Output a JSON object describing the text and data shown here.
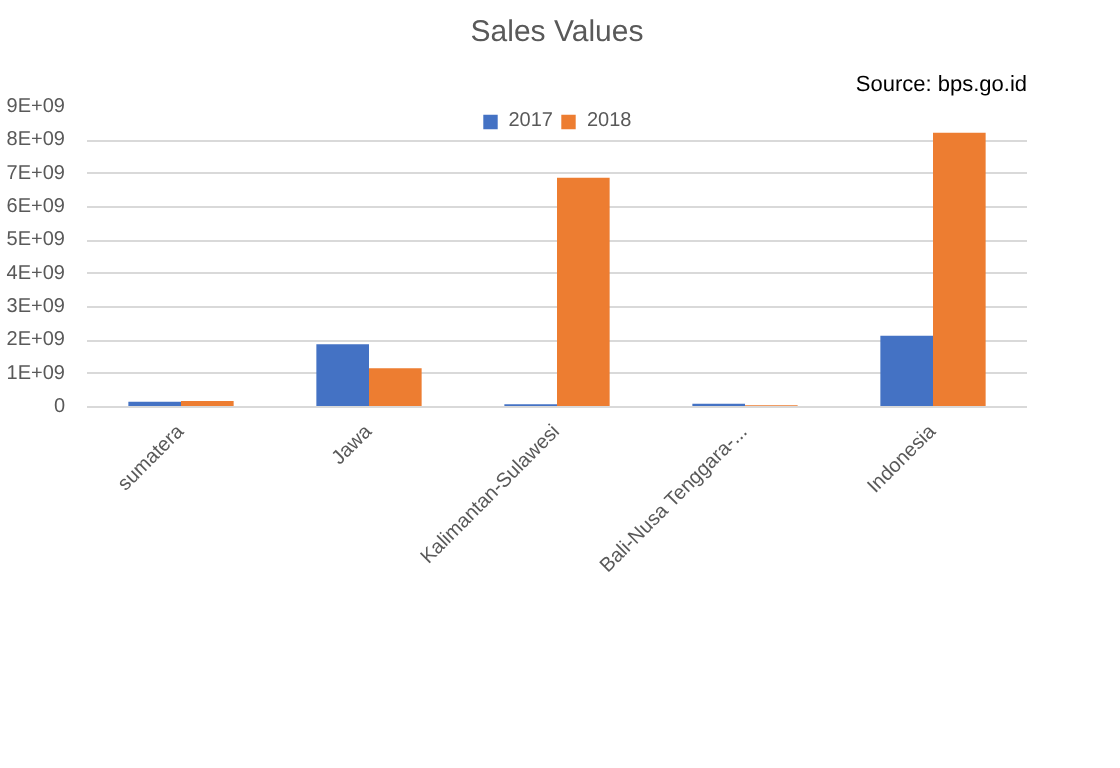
{
  "chart_data": {
    "type": "bar",
    "title": "Sales Values",
    "categories": [
      "sumatera",
      "Jawa",
      "Kalimantan-Sulawesi",
      "Bali-Nusa Tenggara-...",
      "Indonesia"
    ],
    "series": [
      {
        "name": "2017",
        "color": "#4472c4",
        "values": [
          160000000,
          1880000000,
          80000000,
          100000000,
          2140000000
        ]
      },
      {
        "name": "2018",
        "color": "#ed7d31",
        "values": [
          180000000,
          1160000000,
          6880000000,
          50000000,
          8230000000
        ]
      }
    ],
    "ylim": [
      0,
      9000000000
    ],
    "yticks": [
      0,
      {
        "value": 1000000000,
        "label": "1E+09"
      },
      {
        "value": 2000000000,
        "label": "2E+09"
      },
      {
        "value": 3000000000,
        "label": "3E+09"
      },
      {
        "value": 4000000000,
        "label": "4E+09"
      },
      {
        "value": 5000000000,
        "label": "5E+09"
      },
      {
        "value": 6000000000,
        "label": "6E+09"
      },
      {
        "value": 7000000000,
        "label": "7E+09"
      },
      {
        "value": 8000000000,
        "label": "8E+09"
      },
      {
        "value": 9000000000,
        "label": "9E+09"
      }
    ],
    "grid": "y",
    "legend": "top",
    "annotations": [
      "Source: bps.go.id"
    ]
  }
}
